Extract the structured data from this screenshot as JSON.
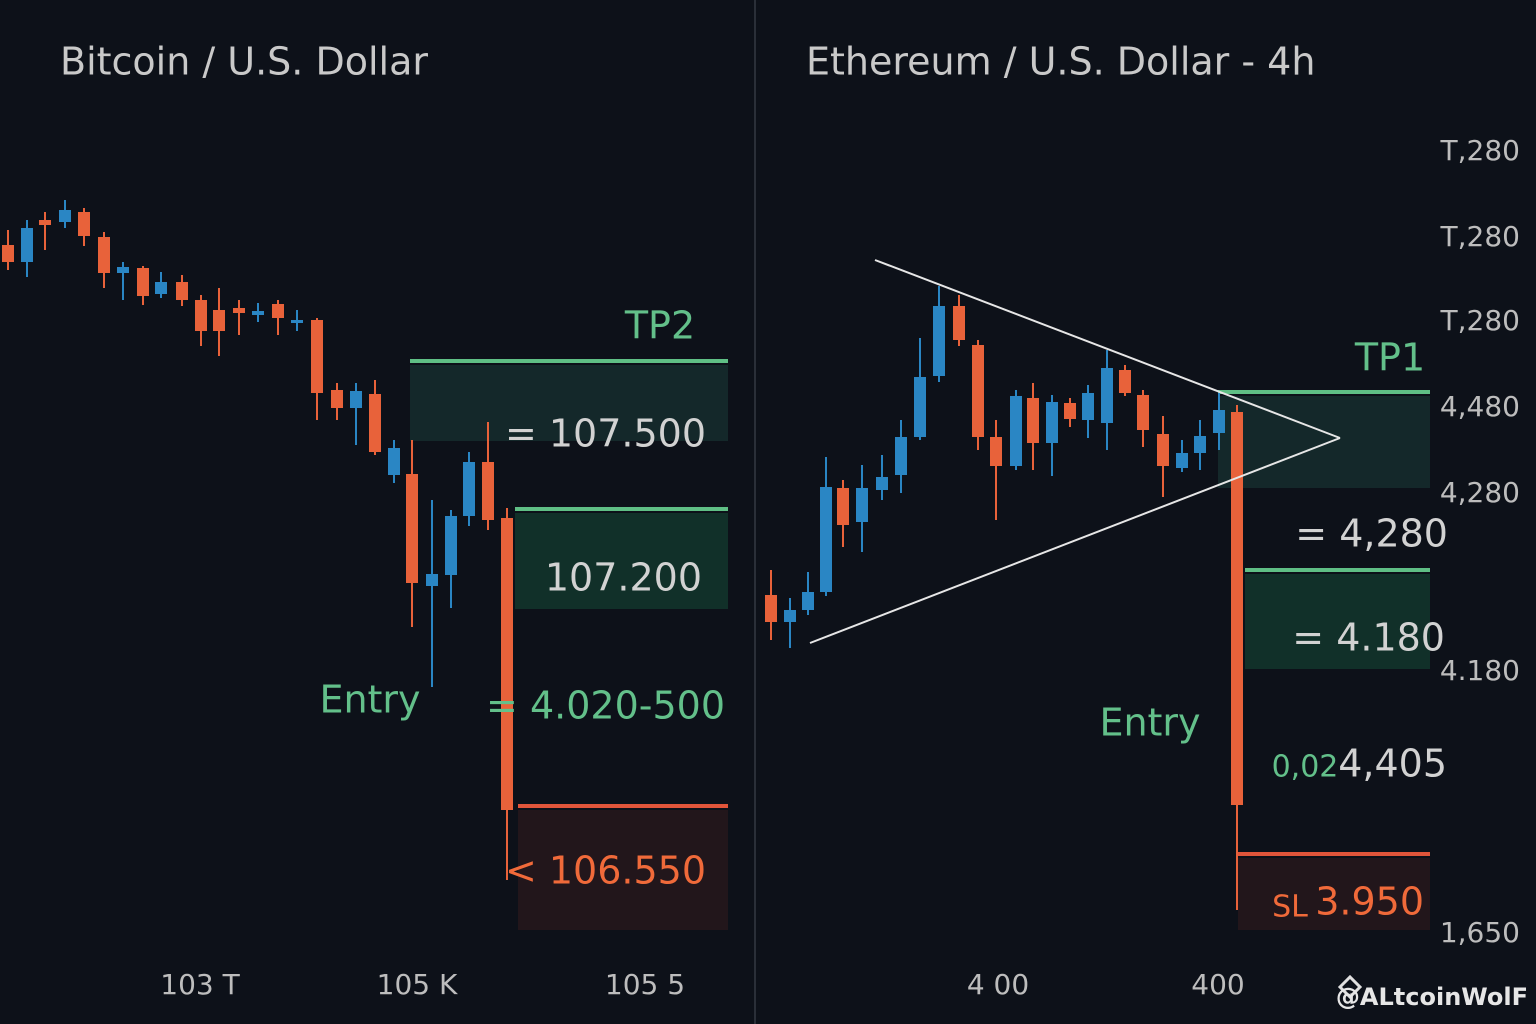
{
  "panels": [
    {
      "title": "Bitcoin / U.S. Dollar",
      "tp": "TP2",
      "tp_level": "= 107.500",
      "level2": "107.200",
      "entry": "Entry",
      "entry_level": "= 4.020-500",
      "sl_level": "< 106.550",
      "x_labels": [
        "103 T",
        "105 K",
        "105 5"
      ]
    },
    {
      "title": "Ethereum / U.S. Dollar - 4h",
      "y_labels": [
        "T,280",
        "T,280",
        "T,280",
        "4,480",
        "4,280",
        "4.180",
        "1,650"
      ],
      "tp": "TP1",
      "tp_level": "= 4,280",
      "level2": "= 4.180",
      "entry": "Entry",
      "entry_ratio": "0,02",
      "entry_level": "4,405",
      "sl": "SL",
      "sl_level": "3.950",
      "x_labels": [
        "4 00",
        "400"
      ]
    }
  ],
  "watermark": "@ALtcoinWolF"
}
